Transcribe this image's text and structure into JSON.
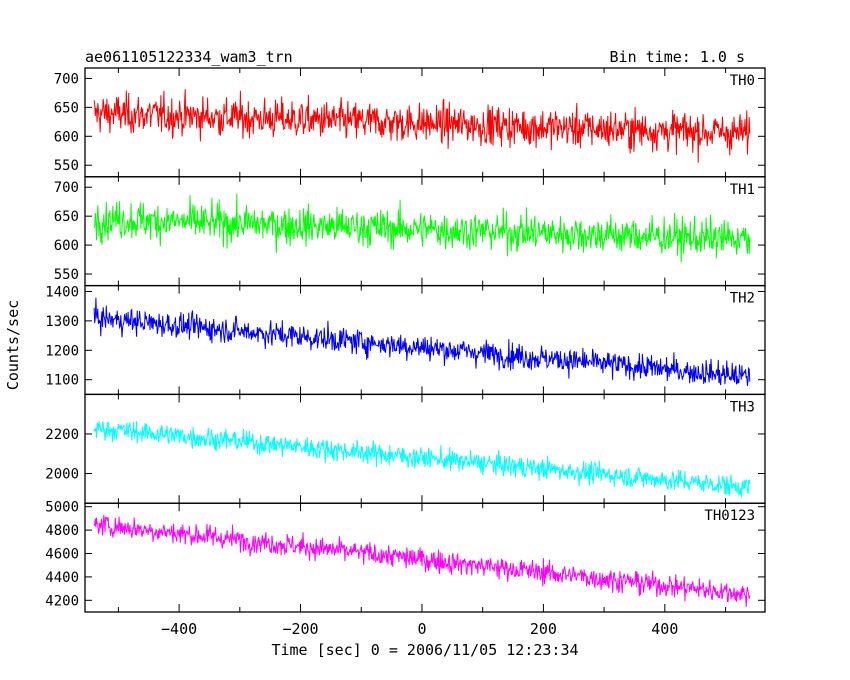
{
  "header": {
    "title": "ae061105122334_wam3_trn",
    "bin_time": "Bin time: 1.0 s"
  },
  "ylabel": "Counts/sec",
  "xlabel": "Time [sec] 0 = 2006/11/05 12:23:34",
  "chart_data": {
    "type": "line",
    "x": {
      "min": -540,
      "max": 540,
      "range": [
        -555,
        565
      ],
      "ticks": [
        -400,
        -200,
        0,
        200,
        400
      ],
      "tick_labels": [
        "−400",
        "−200",
        "0",
        "200",
        "400"
      ]
    },
    "panels": [
      {
        "name": "TH0",
        "color": "#ff0000",
        "ylim": [
          530,
          718
        ],
        "yticks": [
          550,
          600,
          650,
          700
        ],
        "ytick_labels": [
          "550",
          "600",
          "650",
          "700"
        ],
        "trend": {
          "start": 640,
          "end": 605
        },
        "noise_sd": 28
      },
      {
        "name": "TH1",
        "color": "#00ff00",
        "ylim": [
          530,
          718
        ],
        "yticks": [
          550,
          600,
          650,
          700
        ],
        "ytick_labels": [
          "550",
          "600",
          "650",
          "700"
        ],
        "trend": {
          "start": 645,
          "end": 610
        },
        "noise_sd": 27
      },
      {
        "name": "TH2",
        "color": "#0000ff",
        "ylim": [
          1050,
          1420
        ],
        "yticks": [
          1100,
          1200,
          1300,
          1400
        ],
        "ytick_labels": [
          "1100",
          "1200",
          "1300",
          "1400"
        ],
        "trend": {
          "start": 1310,
          "end": 1110
        },
        "noise_sd": 36
      },
      {
        "name": "TH3",
        "color": "#00ffff",
        "ylim": [
          1850,
          2400
        ],
        "yticks": [
          2000,
          2200
        ],
        "ytick_labels": [
          "2000",
          "2200"
        ],
        "trend": {
          "start": 2230,
          "end": 1930
        },
        "noise_sd": 45
      },
      {
        "name": "TH0123",
        "color": "#ff00ff",
        "ylim": [
          4100,
          5030
        ],
        "yticks": [
          4200,
          4400,
          4600,
          4800,
          5000
        ],
        "ytick_labels": [
          "4200",
          "4400",
          "4600",
          "4800",
          "5000"
        ],
        "trend": {
          "start": 4850,
          "end": 4250
        },
        "noise_sd": 80
      }
    ]
  }
}
